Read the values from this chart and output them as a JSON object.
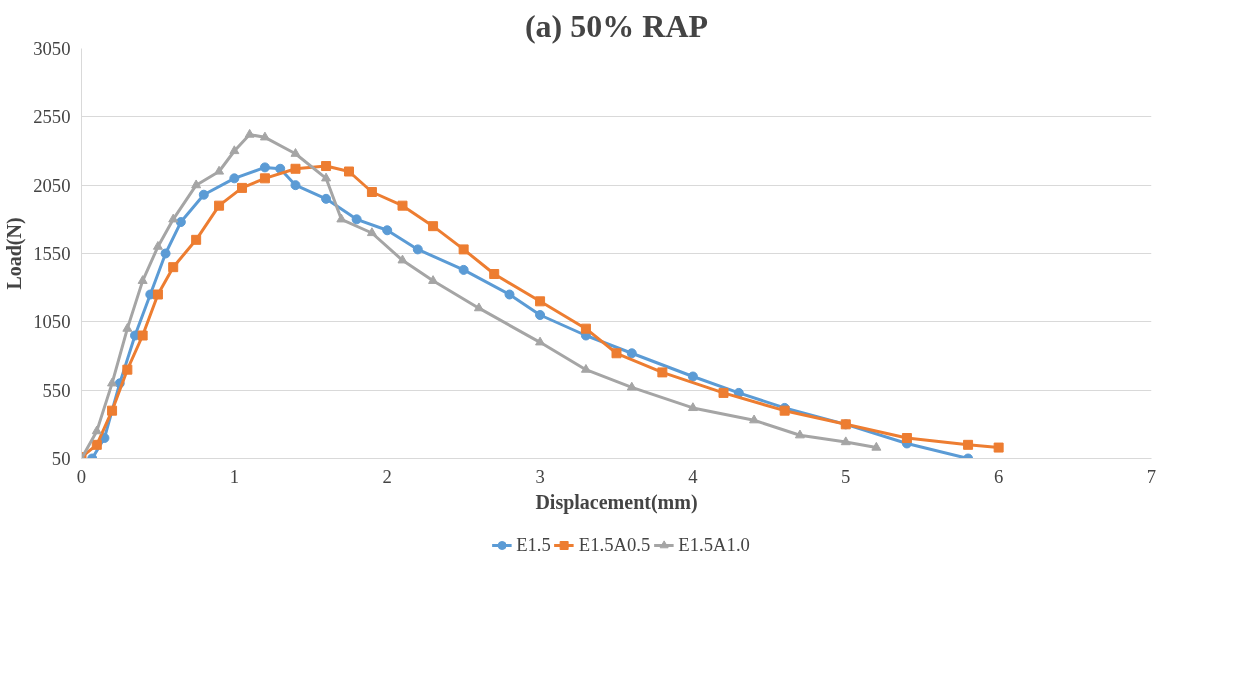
{
  "chart_data": {
    "type": "line",
    "title": "(a) 50% RAP",
    "xlabel": "Displacement(mm)",
    "ylabel": "Load(N)",
    "xlim": [
      0,
      7
    ],
    "xticks": [
      0,
      1,
      2,
      3,
      4,
      5,
      6,
      7
    ],
    "ylim": [
      50,
      3050
    ],
    "yticks": [
      50,
      550,
      1050,
      1550,
      2050,
      2550,
      3050
    ],
    "grid": "y",
    "legend": "bottom",
    "series": [
      {
        "name": "E1.5",
        "color": "#5b9bd5",
        "marker": "circle",
        "x": [
          0.07,
          0.15,
          0.25,
          0.35,
          0.45,
          0.55,
          0.65,
          0.8,
          1.0,
          1.2,
          1.3,
          1.4,
          1.6,
          1.8,
          2.0,
          2.2,
          2.5,
          2.8,
          3.0,
          3.3,
          3.6,
          4.0,
          4.3,
          4.6,
          5.0,
          5.4,
          5.8
        ],
        "values": [
          50,
          200,
          600,
          950,
          1250,
          1550,
          1780,
          1980,
          2100,
          2180,
          2170,
          2050,
          1950,
          1800,
          1720,
          1580,
          1430,
          1250,
          1100,
          950,
          820,
          650,
          530,
          420,
          300,
          160,
          50
        ]
      },
      {
        "name": "E1.5A0.5",
        "color": "#ed7d31",
        "marker": "square",
        "x": [
          0,
          0.1,
          0.2,
          0.3,
          0.4,
          0.5,
          0.6,
          0.75,
          0.9,
          1.05,
          1.2,
          1.4,
          1.6,
          1.75,
          1.9,
          2.1,
          2.3,
          2.5,
          2.7,
          3.0,
          3.3,
          3.5,
          3.8,
          4.2,
          4.6,
          5.0,
          5.4,
          5.8,
          6.0
        ],
        "values": [
          60,
          150,
          400,
          700,
          950,
          1250,
          1450,
          1650,
          1900,
          2030,
          2100,
          2170,
          2190,
          2150,
          2000,
          1900,
          1750,
          1580,
          1400,
          1200,
          1000,
          820,
          680,
          530,
          400,
          300,
          200,
          150,
          130
        ]
      },
      {
        "name": "E1.5A1.0",
        "color": "#a5a5a5",
        "marker": "triangle",
        "x": [
          0,
          0.1,
          0.2,
          0.3,
          0.4,
          0.5,
          0.6,
          0.75,
          0.9,
          1.0,
          1.1,
          1.2,
          1.4,
          1.6,
          1.7,
          1.9,
          2.1,
          2.3,
          2.6,
          3.0,
          3.3,
          3.6,
          4.0,
          4.4,
          4.7,
          5.0,
          5.2
        ],
        "values": [
          50,
          250,
          600,
          1000,
          1350,
          1600,
          1800,
          2050,
          2150,
          2300,
          2420,
          2400,
          2280,
          2100,
          1800,
          1700,
          1500,
          1350,
          1150,
          900,
          700,
          570,
          420,
          330,
          220,
          170,
          130
        ]
      }
    ]
  }
}
